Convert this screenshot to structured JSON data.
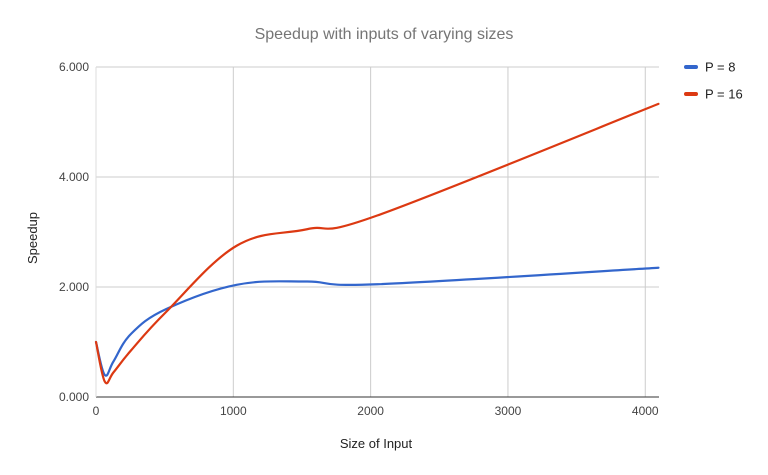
{
  "chart_data": {
    "type": "line",
    "title": "Speedup with inputs of varying sizes",
    "xlabel": "Size of Input",
    "ylabel": "Speedup",
    "xlim": [
      0,
      4100
    ],
    "ylim": [
      0,
      6
    ],
    "x_ticks": [
      0,
      1000,
      2000,
      3000,
      4000
    ],
    "x_tick_labels": [
      "0",
      "1000",
      "2000",
      "3000",
      "4000"
    ],
    "y_ticks": [
      0,
      2,
      4,
      6
    ],
    "y_tick_labels": [
      "0.000",
      "2.000",
      "4.000",
      "6.000"
    ],
    "grid": true,
    "legend_position": "right",
    "series": [
      {
        "name": "P = 8",
        "color": "#3366cc",
        "x": [
          0,
          64,
          128,
          256,
          512,
          1024,
          1536,
          2048,
          4096
        ],
        "y": [
          1.0,
          0.4,
          0.65,
          1.15,
          1.6,
          2.04,
          2.1,
          2.05,
          2.35
        ]
      },
      {
        "name": "P = 16",
        "color": "#dc3912",
        "x": [
          0,
          64,
          128,
          256,
          512,
          1024,
          1536,
          2048,
          4096
        ],
        "y": [
          1.0,
          0.28,
          0.45,
          0.85,
          1.55,
          2.75,
          3.05,
          3.3,
          5.33
        ]
      }
    ]
  }
}
